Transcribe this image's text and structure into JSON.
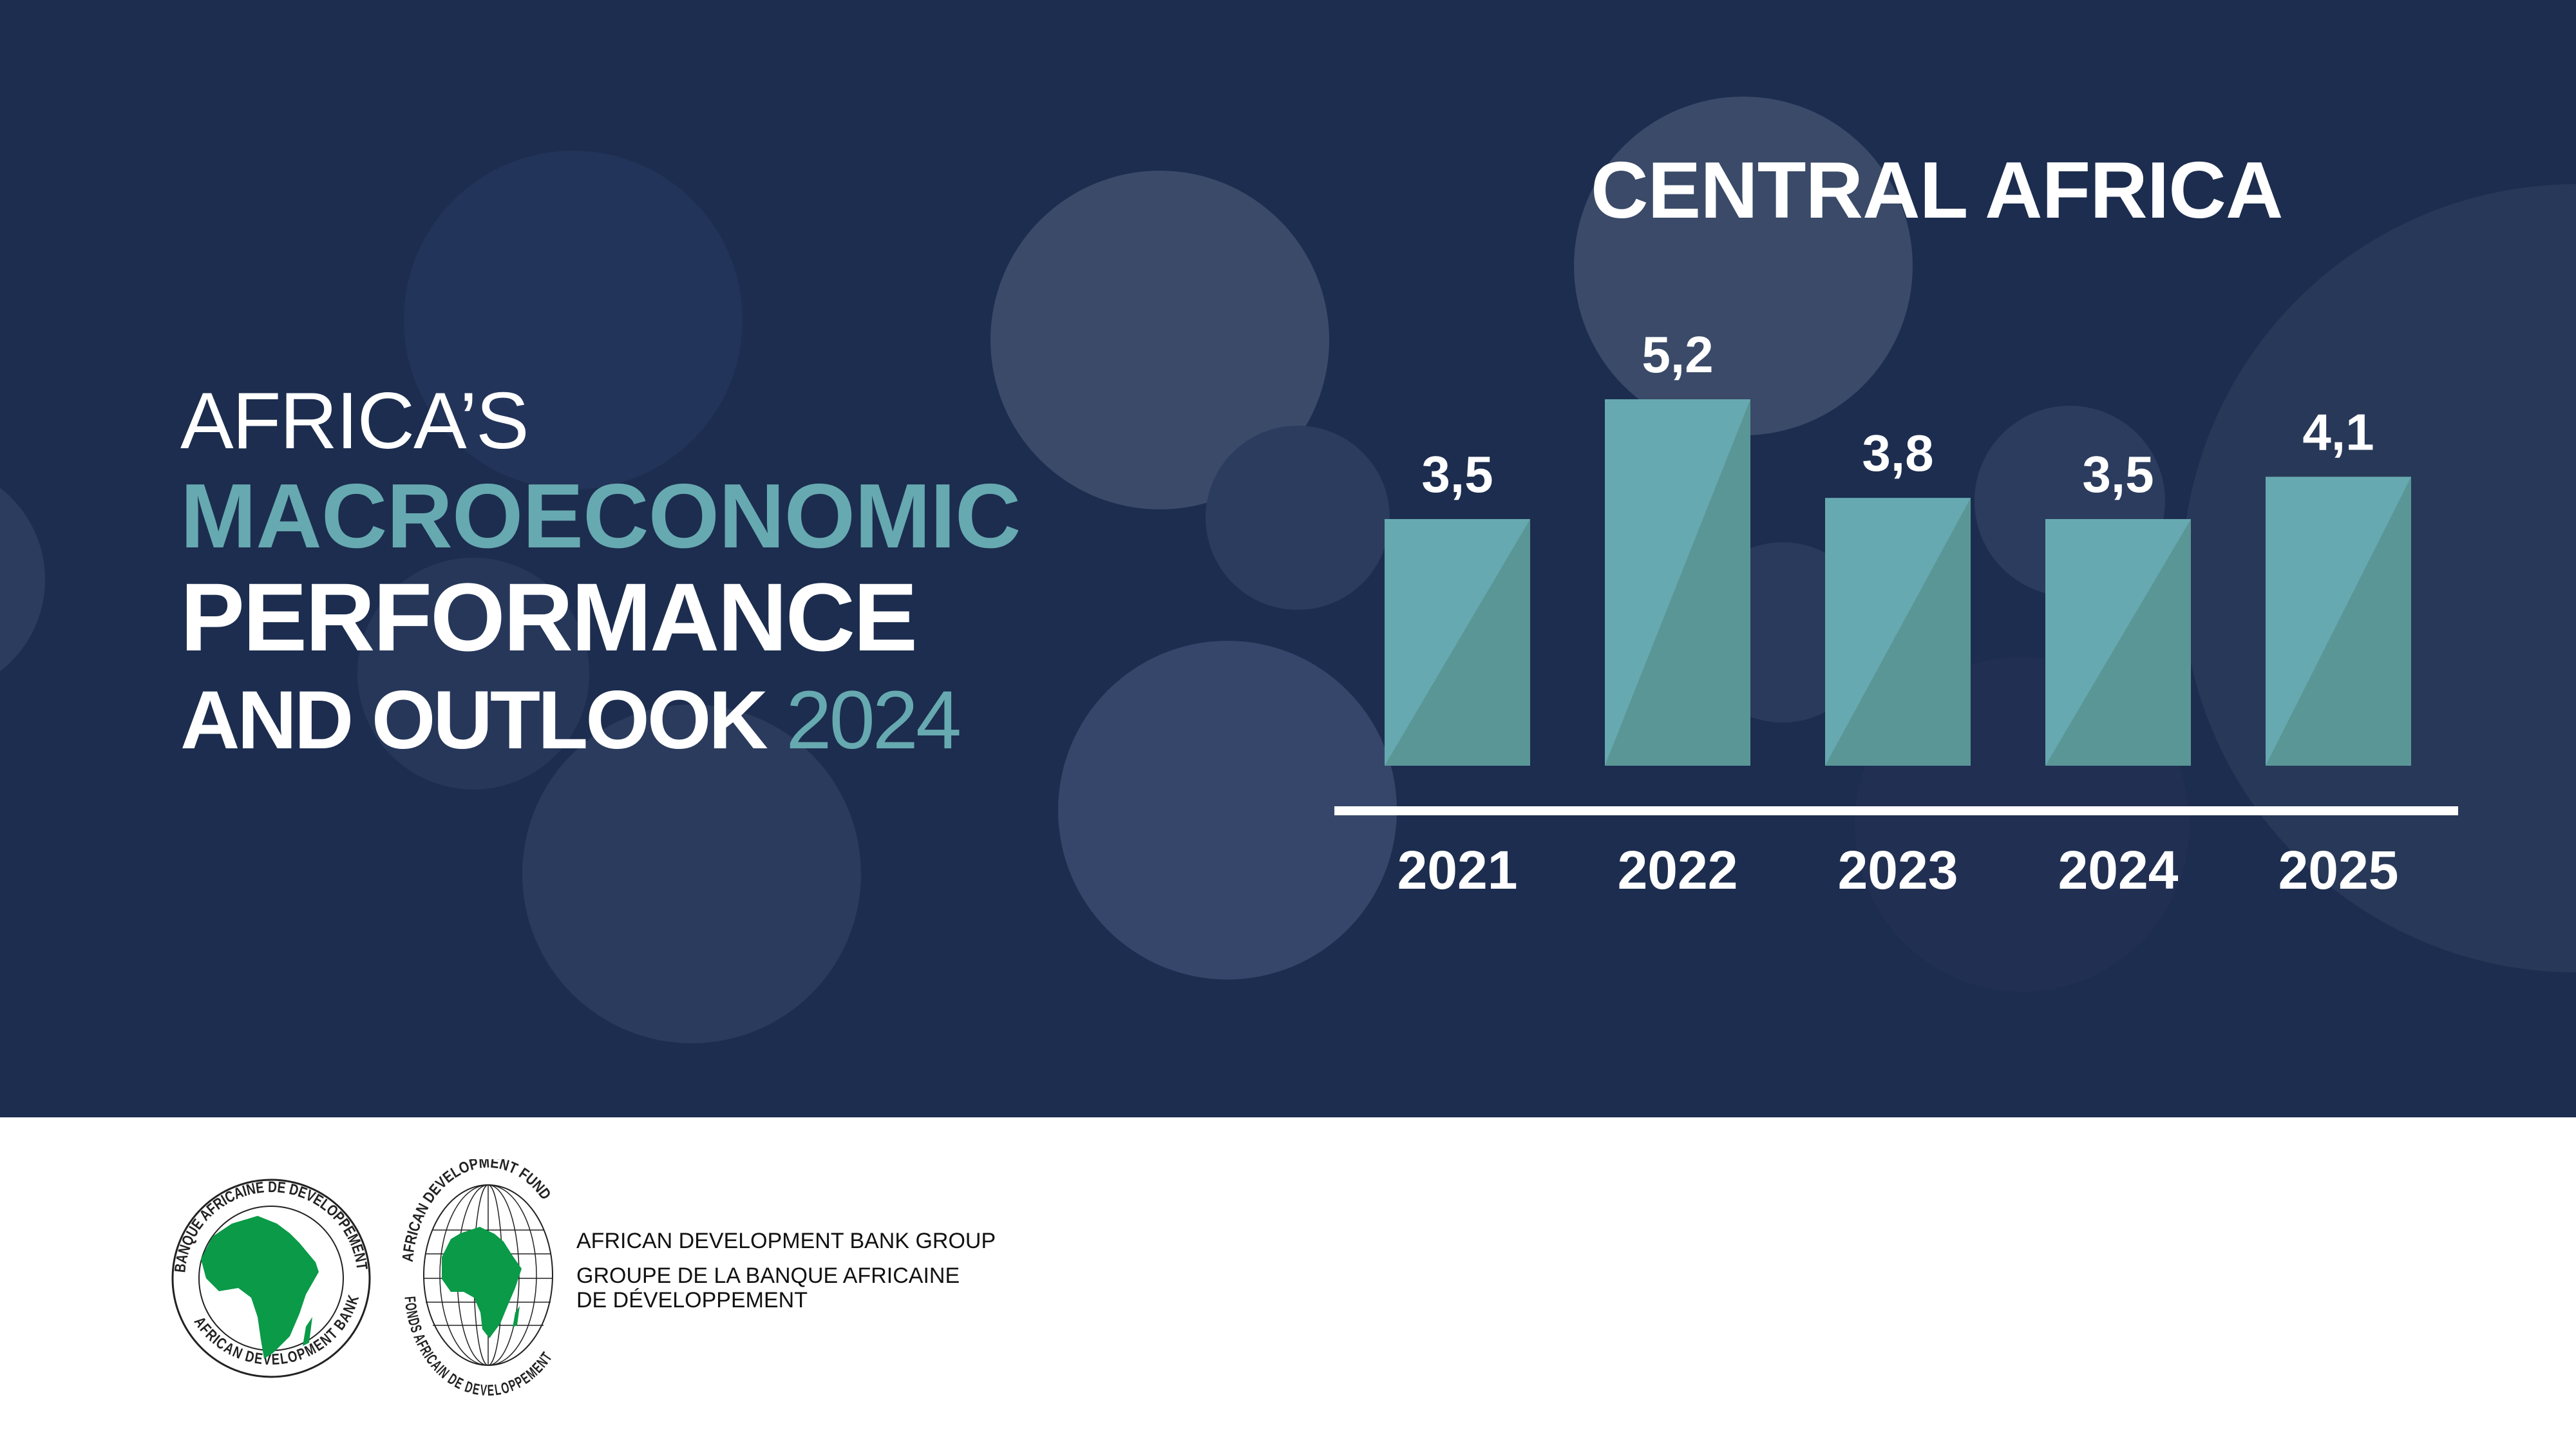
{
  "heading": {
    "line1": "AFRICA’S",
    "line2": "MACROECONOMIC",
    "line3": "PERFORMANCE",
    "line4_prefix": "AND OUTLOOK",
    "line4_year": "2024"
  },
  "colors": {
    "background": "#1c2d4f",
    "bar_light": "#67a9b0",
    "bar_dark": "#5a9696",
    "accent_text": "#67a9b0",
    "logo_green": "#0a9a48"
  },
  "chart_data": {
    "type": "bar",
    "title": "CENTRAL AFRICA",
    "categories": [
      "2021",
      "2022",
      "2023",
      "2024",
      "2025"
    ],
    "values": [
      3.5,
      5.2,
      3.8,
      3.5,
      4.1
    ],
    "value_labels": [
      "3,5",
      "5,2",
      "3,8",
      "3,5",
      "4,1"
    ],
    "xlabel": "",
    "ylabel": "",
    "ylim": [
      0,
      5.2
    ],
    "grid": false
  },
  "footer": {
    "org_en": "AFRICAN DEVELOPMENT BANK GROUP",
    "org_fr_line1": "GROUPE DE LA BANQUE AFRICAINE",
    "org_fr_line2": "DE DÉVELOPPEMENT",
    "logo_bank_top": "BANQUE AFRICAINE DE DEVELOPPEMENT",
    "logo_bank_bottom": "AFRICAN DEVELOPMENT BANK",
    "logo_fund_top": "AFRICAN DEVELOPMENT FUND",
    "logo_fund_bottom": "FONDS AFRICAIN DE DEVELOPPEMENT"
  }
}
